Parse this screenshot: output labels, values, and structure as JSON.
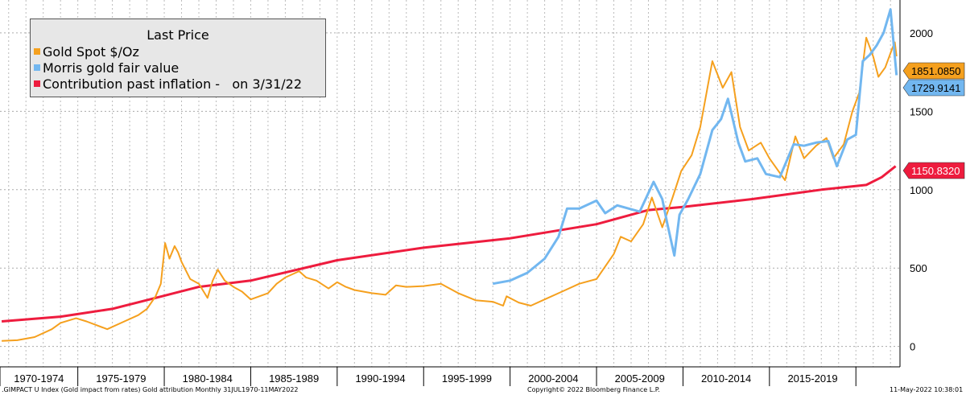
{
  "chart_data": {
    "type": "line",
    "legend": {
      "title": "Last Price",
      "position": "top-left"
    },
    "series": [
      {
        "name": "Gold Spot $/Oz",
        "color": "#f5a01e",
        "last_label": "1851.0850",
        "points": [
          [
            1970.6,
            36
          ],
          [
            1971.5,
            40
          ],
          [
            1972.5,
            60
          ],
          [
            1973.5,
            110
          ],
          [
            1974.0,
            150
          ],
          [
            1974.9,
            180
          ],
          [
            1975.5,
            160
          ],
          [
            1976.7,
            110
          ],
          [
            1977.5,
            150
          ],
          [
            1978.5,
            200
          ],
          [
            1979.0,
            240
          ],
          [
            1979.5,
            320
          ],
          [
            1979.8,
            400
          ],
          [
            1980.05,
            660
          ],
          [
            1980.3,
            560
          ],
          [
            1980.6,
            640
          ],
          [
            1980.8,
            600
          ],
          [
            1981.0,
            540
          ],
          [
            1981.5,
            430
          ],
          [
            1982.0,
            400
          ],
          [
            1982.5,
            310
          ],
          [
            1982.8,
            420
          ],
          [
            1983.1,
            490
          ],
          [
            1983.5,
            420
          ],
          [
            1984.0,
            380
          ],
          [
            1984.5,
            350
          ],
          [
            1985.0,
            300
          ],
          [
            1985.5,
            320
          ],
          [
            1986.0,
            340
          ],
          [
            1986.5,
            400
          ],
          [
            1987.0,
            440
          ],
          [
            1987.8,
            480
          ],
          [
            1988.2,
            440
          ],
          [
            1988.8,
            420
          ],
          [
            1989.5,
            370
          ],
          [
            1990.0,
            410
          ],
          [
            1990.5,
            380
          ],
          [
            1991.0,
            360
          ],
          [
            1992.0,
            340
          ],
          [
            1992.8,
            330
          ],
          [
            1993.4,
            390
          ],
          [
            1994.0,
            380
          ],
          [
            1995.0,
            385
          ],
          [
            1996.0,
            400
          ],
          [
            1997.0,
            340
          ],
          [
            1998.0,
            295
          ],
          [
            1999.0,
            285
          ],
          [
            1999.6,
            260
          ],
          [
            1999.8,
            320
          ],
          [
            2000.5,
            280
          ],
          [
            2001.2,
            260
          ],
          [
            2002.0,
            300
          ],
          [
            2003.0,
            350
          ],
          [
            2004.0,
            400
          ],
          [
            2005.0,
            430
          ],
          [
            2006.0,
            590
          ],
          [
            2006.4,
            700
          ],
          [
            2007.0,
            670
          ],
          [
            2007.7,
            780
          ],
          [
            2008.2,
            950
          ],
          [
            2008.8,
            760
          ],
          [
            2009.4,
            950
          ],
          [
            2009.9,
            1120
          ],
          [
            2010.5,
            1220
          ],
          [
            2011.0,
            1400
          ],
          [
            2011.7,
            1820
          ],
          [
            2012.3,
            1650
          ],
          [
            2012.8,
            1750
          ],
          [
            2013.3,
            1400
          ],
          [
            2013.8,
            1250
          ],
          [
            2014.5,
            1300
          ],
          [
            2015.0,
            1200
          ],
          [
            2015.9,
            1060
          ],
          [
            2016.5,
            1340
          ],
          [
            2017.0,
            1200
          ],
          [
            2017.7,
            1280
          ],
          [
            2018.3,
            1330
          ],
          [
            2018.7,
            1200
          ],
          [
            2019.3,
            1290
          ],
          [
            2019.8,
            1500
          ],
          [
            2020.2,
            1620
          ],
          [
            2020.6,
            1970
          ],
          [
            2021.0,
            1850
          ],
          [
            2021.3,
            1720
          ],
          [
            2021.7,
            1780
          ],
          [
            2022.1,
            1900
          ],
          [
            2022.25,
            1940
          ],
          [
            2022.35,
            1851
          ]
        ]
      },
      {
        "name": "Morris gold fair value",
        "color": "#72b7f0",
        "last_label": "1729.9141",
        "points": [
          [
            1999.0,
            400
          ],
          [
            2000.0,
            420
          ],
          [
            2001.0,
            470
          ],
          [
            2002.0,
            560
          ],
          [
            2002.8,
            700
          ],
          [
            2003.3,
            880
          ],
          [
            2004.0,
            880
          ],
          [
            2005.0,
            930
          ],
          [
            2005.5,
            850
          ],
          [
            2006.2,
            900
          ],
          [
            2007.5,
            860
          ],
          [
            2008.3,
            1050
          ],
          [
            2008.8,
            940
          ],
          [
            2009.1,
            780
          ],
          [
            2009.5,
            580
          ],
          [
            2009.8,
            840
          ],
          [
            2010.3,
            940
          ],
          [
            2011.0,
            1100
          ],
          [
            2011.7,
            1380
          ],
          [
            2012.2,
            1450
          ],
          [
            2012.6,
            1580
          ],
          [
            2013.2,
            1300
          ],
          [
            2013.6,
            1180
          ],
          [
            2014.3,
            1200
          ],
          [
            2014.8,
            1100
          ],
          [
            2015.6,
            1080
          ],
          [
            2016.4,
            1290
          ],
          [
            2017.0,
            1280
          ],
          [
            2017.7,
            1300
          ],
          [
            2018.4,
            1310
          ],
          [
            2018.9,
            1150
          ],
          [
            2019.5,
            1320
          ],
          [
            2020.0,
            1350
          ],
          [
            2020.4,
            1820
          ],
          [
            2020.8,
            1860
          ],
          [
            2021.2,
            1920
          ],
          [
            2021.6,
            2000
          ],
          [
            2022.0,
            2150
          ],
          [
            2022.35,
            1730
          ]
        ]
      },
      {
        "name": "Contribution past inflation -   on 3/31/22",
        "color": "#ee1c3e",
        "last_label": "1150.8320",
        "points": [
          [
            1970.6,
            160
          ],
          [
            1974.0,
            190
          ],
          [
            1977.0,
            240
          ],
          [
            1979.5,
            310
          ],
          [
            1982.0,
            380
          ],
          [
            1985.0,
            420
          ],
          [
            1990.0,
            550
          ],
          [
            1995.0,
            630
          ],
          [
            2000.0,
            690
          ],
          [
            2005.0,
            780
          ],
          [
            2008.0,
            870
          ],
          [
            2010.0,
            890
          ],
          [
            2014.0,
            940
          ],
          [
            2018.0,
            1000
          ],
          [
            2020.6,
            1030
          ],
          [
            2021.5,
            1080
          ],
          [
            2022.3,
            1150
          ]
        ]
      }
    ],
    "y_ticks": [
      "0",
      "500",
      "1000",
      "1500",
      "2000"
    ],
    "y_tick_values": [
      0,
      500,
      1000,
      1500,
      2000
    ],
    "ylim": [
      -130,
      2210
    ],
    "xlim": [
      1970.5,
      2022.55
    ],
    "x_bands": [
      "1970-1974",
      "1975-1979",
      "1980-1984",
      "1985-1989",
      "1990-1994",
      "1995-1999",
      "2000-2004",
      "2005-2009",
      "2010-2014",
      "2015-2019"
    ],
    "x_band_starts": [
      1970.5,
      1975,
      1980,
      1985,
      1990,
      1995,
      2000,
      2005,
      2010,
      2015,
      2020
    ],
    "grid": true
  },
  "footer": {
    "left": ".GIMPACT U Index (Gold impact from rates) Gold attribution  Monthly 31JUL1970-11MAY2022",
    "center": "Copyright© 2022 Bloomberg Finance L.P.",
    "right": "11-May-2022  10:38:01"
  }
}
